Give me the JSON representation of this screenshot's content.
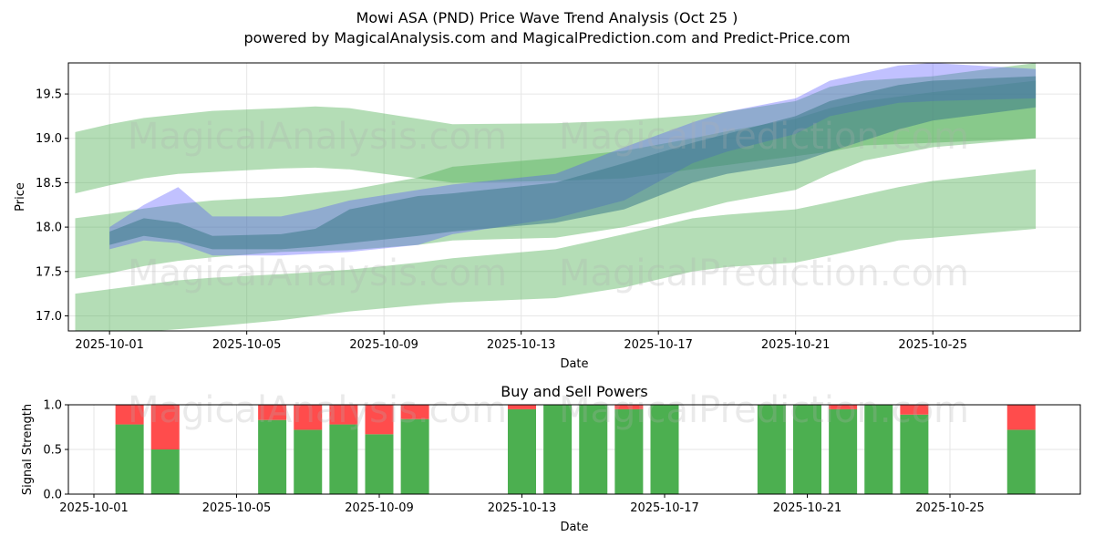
{
  "title_line1": "Mowi ASA (PND) Price Wave Trend Analysis (Oct 25 )",
  "title_line2": "powered by MagicalAnalysis.com and MagicalPrediction.com and Predict-Price.com",
  "watermarks": [
    "MagicalAnalysis.com",
    "MagicalPrediction.com"
  ],
  "colors": {
    "green_band": "#4caf50",
    "blue_band": "#4c4cff",
    "buy": "#4caf50",
    "sell": "#ff4c4c",
    "grid": "#e6e6e6"
  },
  "chart_data": [
    {
      "type": "area",
      "name": "price-wave-chart",
      "xlabel": "Date",
      "ylabel": "Price",
      "x_ticks": [
        "2025-10-01",
        "2025-10-05",
        "2025-10-09",
        "2025-10-13",
        "2025-10-17",
        "2025-10-21",
        "2025-10-25"
      ],
      "y_ticks": [
        "17.0",
        "17.5",
        "18.0",
        "18.5",
        "19.0",
        "19.5"
      ],
      "ylim": [
        16.83,
        19.85
      ],
      "x_range_days": [
        -1.2,
        28.3
      ],
      "grid": true,
      "series": [
        {
          "name": "wave-upper",
          "color": "green",
          "x": [
            -1,
            0,
            1,
            2,
            3,
            5,
            6,
            7,
            9,
            10,
            13,
            15,
            17,
            18,
            20,
            21,
            22,
            24,
            27
          ],
          "lower": [
            18.38,
            18.47,
            18.55,
            18.6,
            18.62,
            18.66,
            18.67,
            18.65,
            18.55,
            18.5,
            18.52,
            18.55,
            18.65,
            18.7,
            18.8,
            18.85,
            18.92,
            18.95,
            19.0
          ],
          "upper": [
            19.07,
            19.16,
            19.23,
            19.27,
            19.31,
            19.34,
            19.36,
            19.34,
            19.22,
            19.16,
            19.17,
            19.2,
            19.26,
            19.3,
            19.42,
            19.58,
            19.65,
            19.7,
            19.85
          ]
        },
        {
          "name": "wave-middle",
          "color": "green",
          "x": [
            -1,
            0,
            1,
            2,
            3,
            5,
            7,
            9,
            10,
            13,
            15,
            17,
            18,
            20,
            21,
            22,
            24,
            27
          ],
          "lower": [
            17.42,
            17.48,
            17.56,
            17.62,
            17.66,
            17.72,
            17.74,
            17.8,
            17.85,
            17.88,
            18.0,
            18.18,
            18.28,
            18.42,
            18.6,
            18.75,
            18.9,
            19.0
          ],
          "upper": [
            18.1,
            18.15,
            18.21,
            18.26,
            18.3,
            18.34,
            18.42,
            18.56,
            18.68,
            18.78,
            18.86,
            19.0,
            19.08,
            19.22,
            19.34,
            19.42,
            19.52,
            19.65
          ]
        },
        {
          "name": "wave-lower",
          "color": "green",
          "x": [
            -1,
            0,
            1,
            2,
            3,
            5,
            7,
            9,
            10,
            13,
            15,
            17,
            18,
            20,
            21,
            23,
            24,
            27
          ],
          "lower": [
            16.78,
            16.8,
            16.82,
            16.85,
            16.88,
            16.95,
            17.05,
            17.12,
            17.15,
            17.2,
            17.32,
            17.5,
            17.55,
            17.6,
            17.68,
            17.85,
            17.88,
            17.98
          ],
          "upper": [
            17.25,
            17.3,
            17.35,
            17.4,
            17.43,
            17.47,
            17.52,
            17.6,
            17.65,
            17.75,
            17.92,
            18.1,
            18.14,
            18.2,
            18.28,
            18.45,
            18.52,
            18.65
          ]
        },
        {
          "name": "wave-blue",
          "color": "blue",
          "x": [
            0,
            1,
            2,
            3,
            5,
            6,
            7,
            9,
            10,
            13,
            15,
            17,
            18,
            20,
            21,
            23,
            24,
            27
          ],
          "lower": [
            17.75,
            17.85,
            17.82,
            17.68,
            17.68,
            17.7,
            17.72,
            17.8,
            17.92,
            18.1,
            18.3,
            18.72,
            18.85,
            19.05,
            19.25,
            19.4,
            19.42,
            19.45
          ],
          "upper": [
            18.0,
            18.25,
            18.45,
            18.12,
            18.12,
            18.2,
            18.3,
            18.42,
            18.48,
            18.6,
            18.9,
            19.18,
            19.3,
            19.45,
            19.65,
            19.82,
            19.85,
            19.78
          ]
        },
        {
          "name": "wave-dark",
          "color": "teal",
          "x": [
            0,
            1,
            2,
            3,
            5,
            6,
            7,
            9,
            10,
            13,
            15,
            17,
            18,
            20,
            21,
            23,
            24,
            27
          ],
          "lower": [
            17.8,
            17.9,
            17.85,
            17.75,
            17.75,
            17.78,
            17.82,
            17.9,
            17.95,
            18.05,
            18.2,
            18.5,
            18.6,
            18.72,
            18.85,
            19.1,
            19.2,
            19.35
          ],
          "upper": [
            17.95,
            18.1,
            18.05,
            17.9,
            17.92,
            17.98,
            18.2,
            18.35,
            18.38,
            18.5,
            18.72,
            18.95,
            19.05,
            19.25,
            19.42,
            19.6,
            19.65,
            19.7
          ]
        }
      ]
    },
    {
      "type": "bar",
      "name": "buy-sell-powers",
      "title": "Buy and Sell Powers",
      "xlabel": "Date",
      "ylabel": "Signal Strength",
      "x_ticks": [
        "2025-10-01",
        "2025-10-05",
        "2025-10-09",
        "2025-10-13",
        "2025-10-17",
        "2025-10-21",
        "2025-10-25"
      ],
      "y_ticks": [
        "0.0",
        "0.5",
        "1.0"
      ],
      "ylim": [
        0,
        1
      ],
      "categories": [
        "2025-10-02",
        "2025-10-03",
        "2025-10-06",
        "2025-10-07",
        "2025-10-08",
        "2025-10-09",
        "2025-10-10",
        "2025-10-13",
        "2025-10-14",
        "2025-10-15",
        "2025-10-16",
        "2025-10-17",
        "2025-10-20",
        "2025-10-21",
        "2025-10-22",
        "2025-10-23",
        "2025-10-24",
        "2025-10-27"
      ],
      "series": [
        {
          "name": "Buy",
          "values": [
            0.78,
            0.5,
            0.83,
            0.72,
            0.78,
            0.67,
            0.84,
            0.95,
            1.0,
            1.0,
            0.95,
            1.0,
            1.0,
            1.0,
            0.95,
            1.0,
            0.89,
            0.72
          ]
        },
        {
          "name": "Sell",
          "values": [
            0.22,
            0.5,
            0.17,
            0.28,
            0.22,
            0.33,
            0.16,
            0.05,
            0.0,
            0.0,
            0.05,
            0.0,
            0.0,
            0.0,
            0.05,
            0.0,
            0.11,
            0.28
          ]
        }
      ]
    }
  ]
}
